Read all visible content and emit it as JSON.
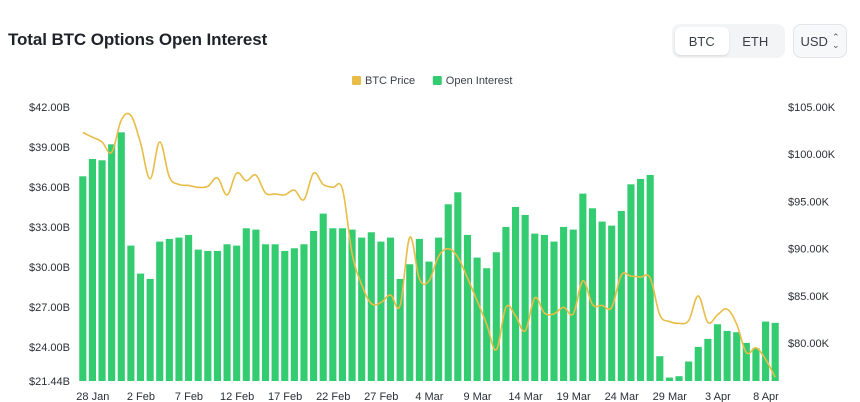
{
  "header": {
    "title": "Total BTC Options Open Interest",
    "asset_tabs": [
      {
        "label": "BTC",
        "active": true
      },
      {
        "label": "ETH",
        "active": false
      }
    ],
    "currency": "USD"
  },
  "chart_data": {
    "type": "bar",
    "legend": [
      {
        "name": "BTC Price",
        "color": "#e8bd47"
      },
      {
        "name": "Open Interest",
        "color": "#33cc70"
      }
    ],
    "legend_position": "top-center",
    "grid": false,
    "x_tick_labels": [
      "28 Jan",
      "2 Feb",
      "7 Feb",
      "12 Feb",
      "17 Feb",
      "22 Feb",
      "27 Feb",
      "4 Mar",
      "9 Mar",
      "14 Mar",
      "19 Mar",
      "24 Mar",
      "29 Mar",
      "3 Apr",
      "8 Apr"
    ],
    "y_left": {
      "ticks": [
        "$42.00B",
        "$39.00B",
        "$36.00B",
        "$33.00B",
        "$30.00B",
        "$27.00B",
        "$24.00B",
        "$21.44B"
      ],
      "range": [
        21.44,
        42.0
      ]
    },
    "y_right": {
      "ticks": [
        "$105.00K",
        "$100.00K",
        "$95.00K",
        "$90.00K",
        "$85.00K",
        "$80.00K"
      ],
      "range": [
        76.0,
        105.0
      ]
    },
    "series": [
      {
        "name": "Open Interest",
        "axis": "left",
        "values": [
          36.8,
          38.1,
          38.0,
          39.2,
          40.1,
          31.6,
          29.5,
          29.1,
          31.9,
          32.1,
          32.2,
          32.4,
          31.3,
          31.2,
          31.2,
          31.7,
          31.6,
          32.9,
          32.8,
          31.7,
          31.7,
          31.2,
          31.4,
          31.7,
          32.7,
          34.0,
          32.9,
          32.9,
          32.8,
          32.2,
          32.6,
          31.9,
          32.2,
          29.1,
          30.2,
          32.1,
          30.4,
          32.2,
          34.7,
          35.6,
          32.4,
          30.7,
          29.9,
          31.1,
          33.0,
          34.5,
          33.9,
          32.5,
          32.4,
          31.9,
          33.0,
          32.8,
          35.5,
          34.4,
          33.4,
          33.1,
          34.2,
          36.2,
          36.6,
          36.9,
          23.3,
          21.7,
          21.8,
          22.9,
          24.0,
          24.6,
          25.7,
          25.2,
          25.1,
          24.3,
          23.9,
          25.9,
          25.8
        ]
      },
      {
        "name": "BTC Price",
        "axis": "right",
        "values": [
          102.3,
          101.8,
          101.3,
          100.2,
          103.6,
          104.1,
          101.2,
          97.4,
          101.3,
          97.6,
          96.8,
          96.7,
          96.5,
          96.6,
          97.5,
          95.7,
          98.0,
          97.2,
          97.8,
          95.9,
          95.8,
          95.7,
          96.2,
          95.2,
          98.0,
          96.8,
          96.5,
          96.3,
          89.5,
          86.2,
          84.2,
          84.3,
          85.1,
          84.0,
          91.2,
          86.8,
          86.6,
          89.2,
          90.0,
          89.1,
          86.9,
          84.5,
          82.0,
          79.3,
          83.8,
          82.9,
          81.3,
          84.8,
          83.2,
          83.1,
          83.8,
          83.1,
          86.6,
          84.1,
          84.0,
          83.8,
          87.2,
          87.1,
          87.0,
          86.9,
          83.0,
          82.3,
          82.1,
          82.4,
          85.0,
          82.2,
          83.0,
          83.6,
          82.0,
          79.0,
          79.5,
          78.3,
          76.4
        ]
      }
    ]
  }
}
